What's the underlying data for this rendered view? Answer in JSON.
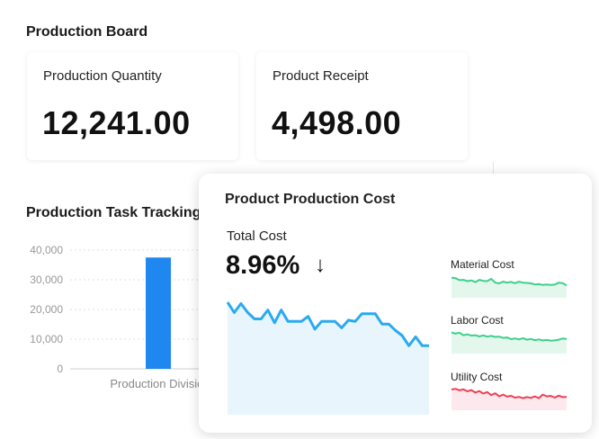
{
  "board": {
    "title": "Production Board"
  },
  "kpis": [
    {
      "label": "Production Quantity",
      "value": "12,241.00"
    },
    {
      "label": "Product Receipt",
      "value": "4,498.00"
    }
  ],
  "task_tracking": {
    "title": "Production Task Tracking"
  },
  "cost_panel": {
    "title": "Product Production Cost",
    "total_label": "Total Cost",
    "total_pct": "8.96%",
    "trend_icon": "arrow-down-icon",
    "arrow_glyph": "↓",
    "colors": {
      "total": "#2aaaf0",
      "material": "#3ed08b",
      "labor": "#3ed08b",
      "utility": "#f04055"
    }
  },
  "chart_data": [
    {
      "type": "bar",
      "categories": [
        "Production Division"
      ],
      "values": [
        37500
      ],
      "ylim": [
        0,
        40000
      ],
      "yticks": [
        "0",
        "10,000",
        "20,000",
        "30,000",
        "40,000"
      ],
      "bar_color": "#1e88f0",
      "grid": true
    },
    {
      "type": "area",
      "series": [
        {
          "values": [
            88,
            80,
            87,
            80,
            75,
            75,
            82,
            72,
            82,
            73,
            73,
            73,
            77,
            67,
            73,
            73,
            73,
            68,
            74,
            73,
            79,
            79,
            79,
            71,
            71,
            66,
            62,
            54,
            61,
            54,
            54
          ]
        }
      ],
      "ylim": [
        0,
        100
      ]
    },
    {
      "type": "area",
      "series": [
        {
          "name": "Material Cost",
          "values": [
            80,
            78,
            70,
            71,
            66,
            69,
            62,
            71,
            67,
            66,
            75,
            60,
            57,
            64,
            60,
            63,
            58,
            64,
            60,
            59,
            57,
            53,
            54,
            51,
            53,
            51,
            52,
            60,
            58,
            49
          ]
        }
      ],
      "ylim": [
        0,
        100
      ]
    },
    {
      "type": "area",
      "series": [
        {
          "name": "Labor Cost",
          "values": [
            84,
            79,
            83,
            73,
            76,
            71,
            73,
            68,
            72,
            67,
            70,
            66,
            67,
            62,
            64,
            57,
            60,
            56,
            61,
            55,
            58,
            53,
            56,
            52,
            54,
            51,
            52,
            55,
            60,
            58
          ]
        }
      ],
      "ylim": [
        0,
        100
      ]
    },
    {
      "type": "area",
      "series": [
        {
          "name": "Utility Cost",
          "values": [
            82,
            85,
            79,
            83,
            75,
            80,
            70,
            76,
            66,
            72,
            60,
            67,
            55,
            62,
            54,
            57,
            50,
            53,
            48,
            52,
            49,
            55,
            48,
            62,
            55,
            57,
            50,
            58,
            52,
            53
          ]
        }
      ],
      "ylim": [
        0,
        100
      ]
    }
  ]
}
